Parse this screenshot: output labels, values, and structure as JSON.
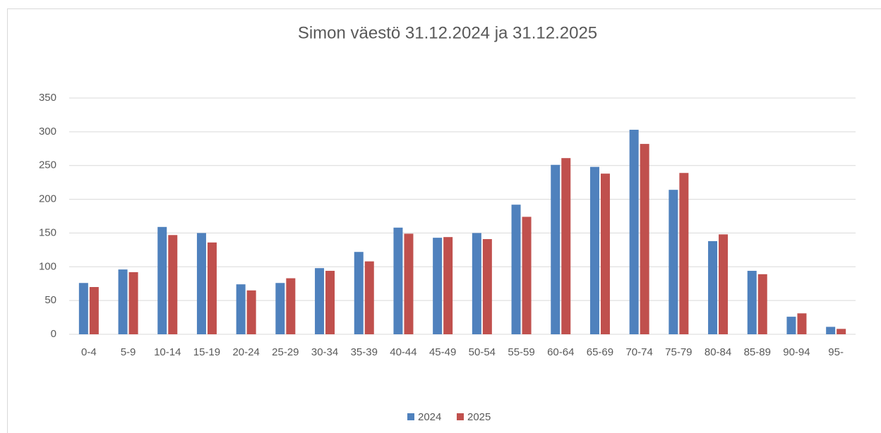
{
  "chart_data": {
    "type": "bar",
    "title": "Simon väestö 31.12.2024 ja 31.12.2025",
    "categories": [
      "0-4",
      "5-9",
      "10-14",
      "15-19",
      "20-24",
      "25-29",
      "30-34",
      "35-39",
      "40-44",
      "45-49",
      "50-54",
      "55-59",
      "60-64",
      "65-69",
      "70-74",
      "75-79",
      "80-84",
      "85-89",
      "90-94",
      "95-"
    ],
    "series": [
      {
        "name": "2024",
        "color": "#4f81bd",
        "values": [
          76,
          96,
          159,
          150,
          74,
          76,
          98,
          122,
          158,
          143,
          150,
          192,
          251,
          248,
          303,
          214,
          138,
          94,
          26,
          11
        ]
      },
      {
        "name": "2025",
        "color": "#c0504d",
        "values": [
          70,
          92,
          147,
          136,
          65,
          83,
          94,
          108,
          149,
          144,
          141,
          174,
          261,
          238,
          282,
          239,
          148,
          89,
          31,
          8
        ]
      }
    ],
    "ylim": [
      0,
      350
    ],
    "yticks": [
      0,
      50,
      100,
      150,
      200,
      250,
      300,
      350
    ],
    "grid": true,
    "legend": "bottom"
  }
}
